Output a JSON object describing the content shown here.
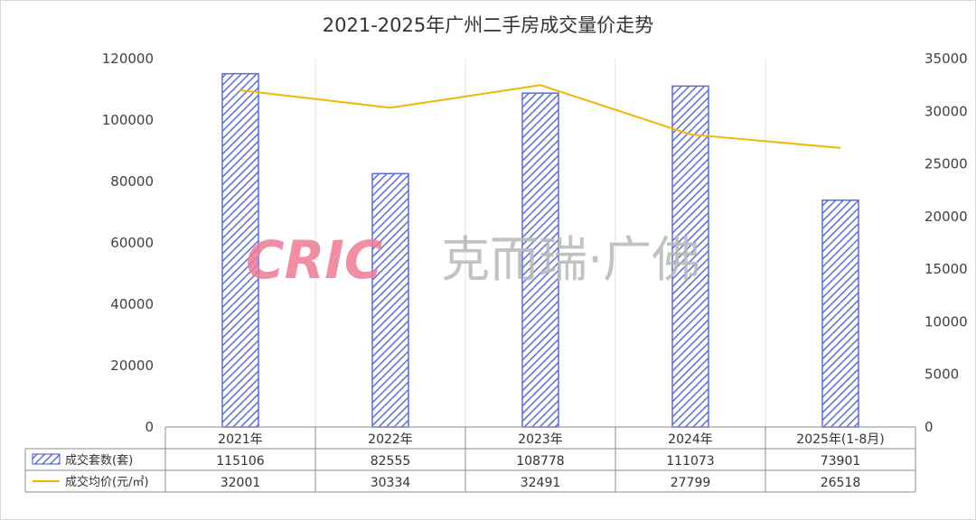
{
  "chart_data": {
    "type": "bar",
    "title": "2021-2025年广州二手房成交量价走势",
    "categories": [
      "2021年",
      "2022年",
      "2023年",
      "2024年",
      "2025年(1-8月)"
    ],
    "series": [
      {
        "name": "成交套数(套)",
        "type": "bar",
        "axis": "left",
        "values": [
          115106,
          82555,
          108778,
          111073,
          73901
        ],
        "color": "#5b6be0"
      },
      {
        "name": "成交均价(元/㎡)",
        "type": "line",
        "axis": "right",
        "values": [
          32001,
          30334,
          32491,
          27799,
          26518
        ],
        "color": "#f2b705"
      }
    ],
    "y_left": {
      "range": [
        0,
        120000
      ],
      "ticks": [
        "0",
        "20000",
        "40000",
        "60000",
        "80000",
        "100000",
        "120000"
      ]
    },
    "y_right": {
      "range": [
        0,
        35000
      ],
      "ticks": [
        "0",
        "5000",
        "10000",
        "15000",
        "20000",
        "25000",
        "30000",
        "35000"
      ]
    },
    "grid": "vertical",
    "legend": "data-table",
    "watermark": {
      "brand": "CRIC",
      "text": "克而瑞·广佛",
      "colors": {
        "brand": "#ef7b95",
        "text": "#b8b8b8"
      }
    }
  }
}
